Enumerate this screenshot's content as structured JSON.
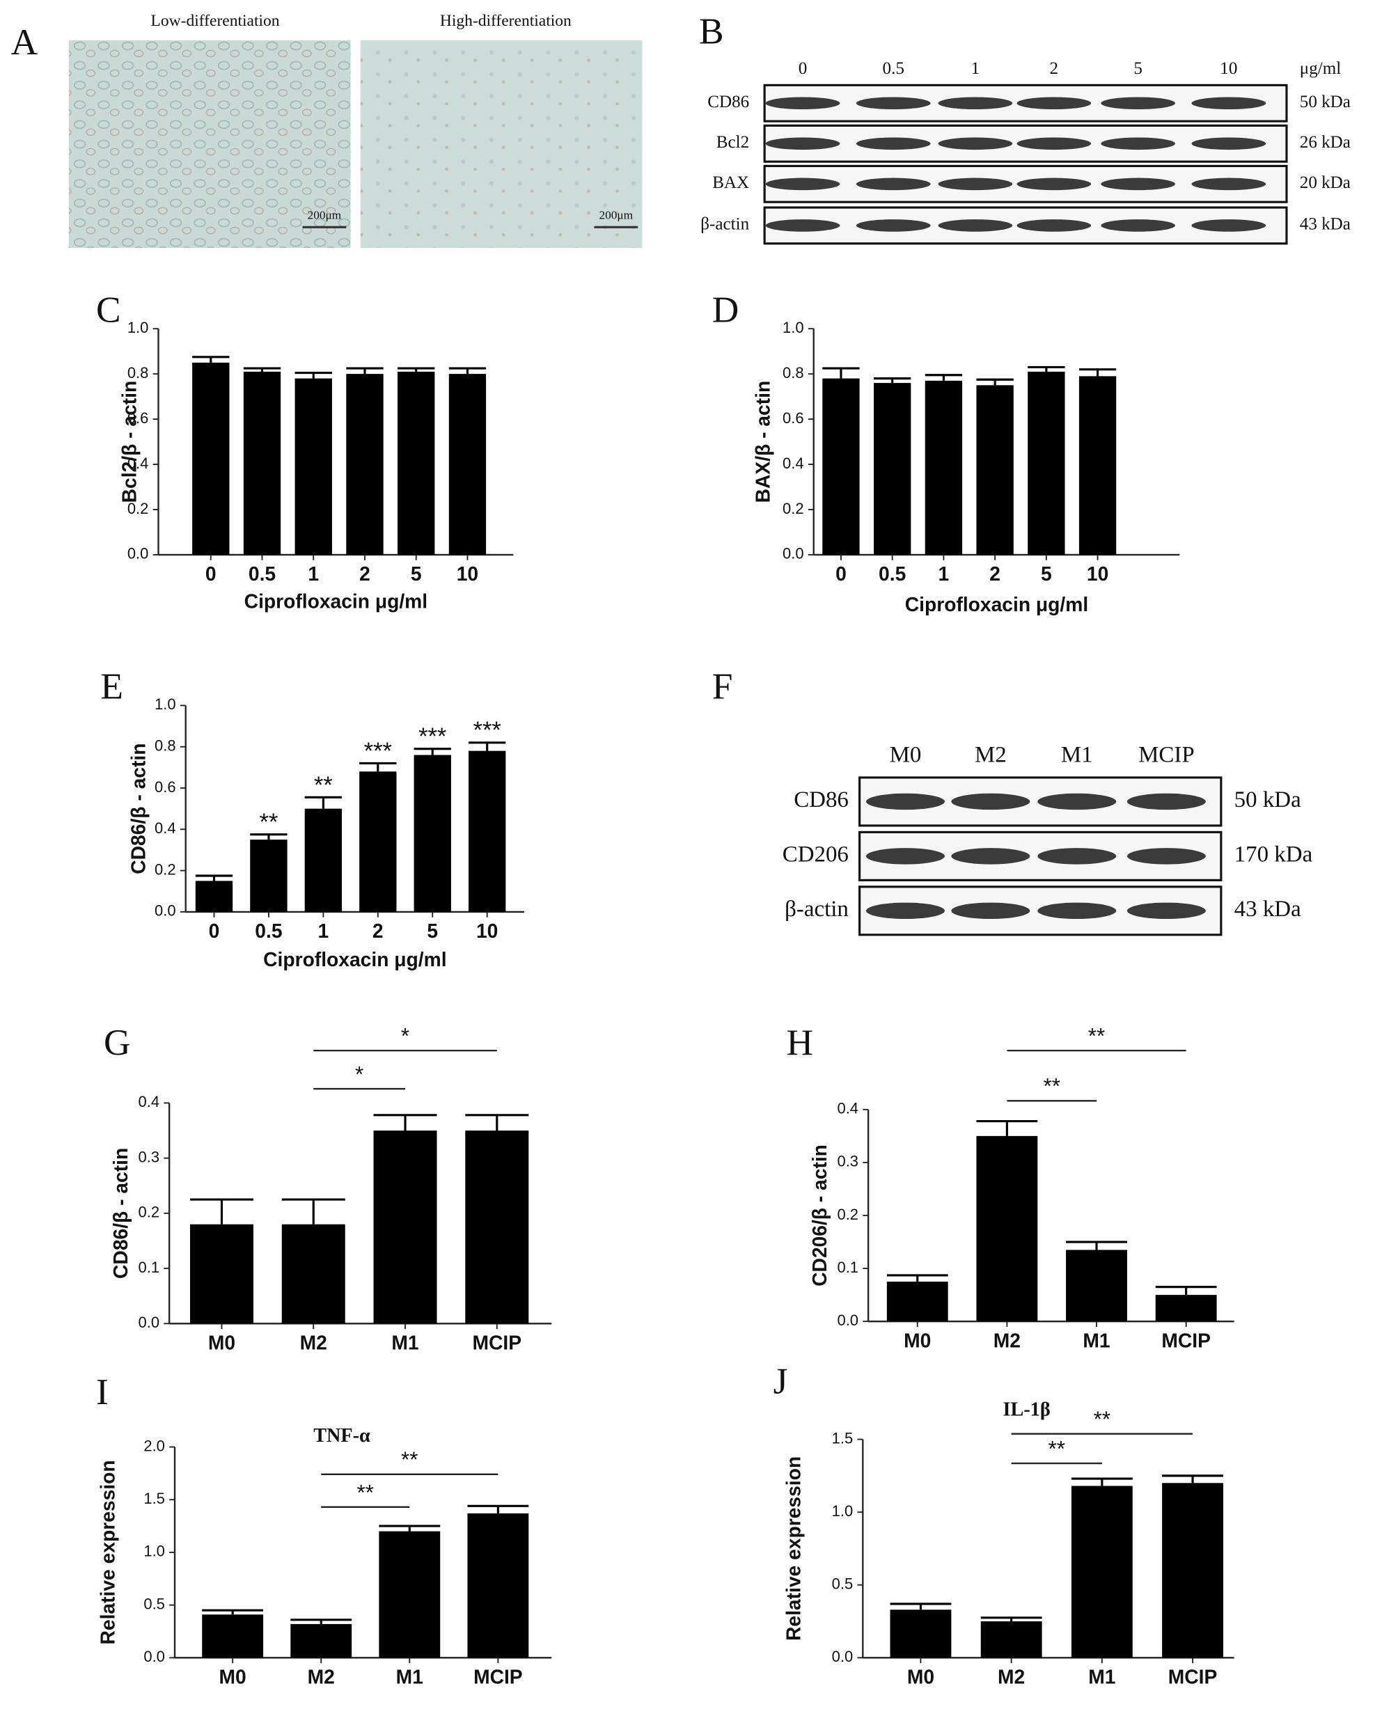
{
  "panel_a": {
    "letter": "A",
    "images": [
      {
        "label": "Low-differentiation",
        "scale": "200μm"
      },
      {
        "label": "High-differentiation",
        "scale": "200μm"
      }
    ]
  },
  "panel_b": {
    "letter": "B",
    "lanes": [
      "0",
      "0.5",
      "1",
      "2",
      "5",
      "10"
    ],
    "unit": "μg/ml",
    "rows": [
      {
        "label": "CD86",
        "size": "50 kDa"
      },
      {
        "label": "Bcl2",
        "size": "26 kDa"
      },
      {
        "label": "BAX",
        "size": "20 kDa"
      },
      {
        "label": "β-actin",
        "size": "43 kDa"
      }
    ]
  },
  "panel_f": {
    "letter": "F",
    "lanes": [
      "M0",
      "M2",
      "M1",
      "MCIP"
    ],
    "rows": [
      {
        "label": "CD86",
        "size": "50 kDa"
      },
      {
        "label": "CD206",
        "size": "170 kDa"
      },
      {
        "label": "β-actin",
        "size": "43 kDa"
      }
    ]
  },
  "chart_data": [
    {
      "type": "bar",
      "panel": "C",
      "ylabel": "Bcl2/β - actin",
      "xlabel": "Ciprofloxacin μg/ml",
      "categories": [
        "0",
        "0.5",
        "1",
        "2",
        "5",
        "10"
      ],
      "values": [
        0.85,
        0.81,
        0.78,
        0.8,
        0.81,
        0.8
      ],
      "errors": [
        0.025,
        0.015,
        0.025,
        0.025,
        0.015,
        0.025
      ],
      "color": "#000000",
      "ylim": [
        0,
        1
      ],
      "yticks": [
        {
          "value": 0,
          "label": "0.0"
        },
        0.2,
        0.4,
        0.6,
        0.8,
        {
          "value": 1,
          "label": "1.0"
        }
      ]
    },
    {
      "type": "bar",
      "panel": "D",
      "ylabel": "BAX/β - actin",
      "xlabel": "Ciprofloxacin μg/ml",
      "categories": [
        "0",
        "0.5",
        "1",
        "2",
        "5",
        "10"
      ],
      "values": [
        0.78,
        0.76,
        0.77,
        0.75,
        0.81,
        0.79
      ],
      "errors": [
        0.045,
        0.02,
        0.025,
        0.025,
        0.02,
        0.03
      ],
      "color": "#000000",
      "ylim": [
        0,
        1
      ],
      "yticks": [
        {
          "value": 0,
          "label": "0.0"
        },
        0.2,
        0.4,
        0.6,
        0.8,
        {
          "value": 1,
          "label": "1.0"
        }
      ]
    },
    {
      "type": "bar",
      "panel": "E",
      "ylabel": "CD86/β - actin",
      "xlabel": "Ciprofloxacin μg/ml",
      "categories": [
        "0",
        "0.5",
        "1",
        "2",
        "5",
        "10"
      ],
      "values": [
        0.15,
        0.35,
        0.5,
        0.68,
        0.76,
        0.78
      ],
      "errors": [
        0.025,
        0.025,
        0.055,
        0.04,
        0.03,
        0.04
      ],
      "annotations": [
        null,
        "**",
        "**",
        "***",
        "***",
        "***"
      ],
      "color": "#000000",
      "ylim": [
        0,
        1
      ],
      "yticks": [
        {
          "value": 0,
          "label": "0.0"
        },
        0.2,
        0.4,
        0.6,
        0.8,
        {
          "value": 1,
          "label": "1.0"
        }
      ]
    },
    {
      "type": "bar",
      "panel": "G",
      "ylabel": "CD86/β - actin",
      "categories": [
        "M0",
        "M2",
        "M1",
        "MCIP"
      ],
      "values": [
        0.18,
        0.18,
        0.35,
        0.35
      ],
      "errors": [
        0.045,
        0.045,
        0.028,
        0.028
      ],
      "comparisons": [
        {
          "between": [
            "M2",
            "M1"
          ],
          "label": "*"
        },
        {
          "between": [
            "M2",
            "MCIP"
          ],
          "label": "*"
        }
      ],
      "color": "#000000",
      "ylim": [
        0,
        0.4
      ],
      "yticks": [
        {
          "value": 0,
          "label": "0.0"
        },
        0.1,
        0.2,
        0.3,
        0.4
      ]
    },
    {
      "type": "bar",
      "panel": "H",
      "ylabel": "CD206/β - actin",
      "categories": [
        "M0",
        "M2",
        "M1",
        "MCIP"
      ],
      "values": [
        0.075,
        0.35,
        0.135,
        0.05
      ],
      "errors": [
        0.012,
        0.028,
        0.015,
        0.015
      ],
      "comparisons": [
        {
          "between": [
            "M2",
            "M1"
          ],
          "label": "**"
        },
        {
          "between": [
            "M2",
            "MCIP"
          ],
          "label": "**"
        }
      ],
      "color": "#000000",
      "ylim": [
        0,
        0.4
      ],
      "yticks": [
        {
          "value": 0,
          "label": "0.0"
        },
        0.1,
        0.2,
        0.3,
        0.4
      ]
    },
    {
      "type": "bar",
      "panel": "I",
      "title": "TNF-α",
      "ylabel": "Relative expression",
      "categories": [
        "M0",
        "M2",
        "M1",
        "MCIP"
      ],
      "values": [
        0.41,
        0.32,
        1.2,
        1.37
      ],
      "errors": [
        0.04,
        0.04,
        0.05,
        0.07
      ],
      "comparisons": [
        {
          "between": [
            "M2",
            "M1"
          ],
          "label": "**"
        },
        {
          "between": [
            "M2",
            "MCIP"
          ],
          "label": "**"
        }
      ],
      "color": "#000000",
      "ylim": [
        0,
        2
      ],
      "yticks": [
        {
          "value": 0,
          "label": "0.0"
        },
        0.5,
        {
          "value": 1,
          "label": "1.0"
        },
        1.5,
        {
          "value": 2,
          "label": "2.0"
        }
      ]
    },
    {
      "type": "bar",
      "panel": "J",
      "title": "IL-1β",
      "ylabel": "Relative expression",
      "categories": [
        "M0",
        "M2",
        "M1",
        "MCIP"
      ],
      "values": [
        0.33,
        0.25,
        1.18,
        1.2
      ],
      "errors": [
        0.04,
        0.025,
        0.05,
        0.05
      ],
      "comparisons": [
        {
          "between": [
            "M2",
            "M1"
          ],
          "label": "**"
        },
        {
          "between": [
            "M2",
            "MCIP"
          ],
          "label": "**"
        }
      ],
      "color": "#000000",
      "ylim": [
        0,
        1.5
      ],
      "yticks": [
        {
          "value": 0,
          "label": "0.0"
        },
        0.5,
        {
          "value": 1,
          "label": "1.0"
        },
        1.5
      ]
    }
  ]
}
